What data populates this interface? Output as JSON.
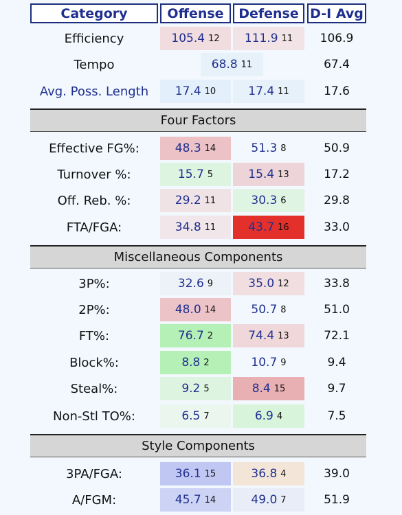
{
  "headers": {
    "category": "Category",
    "offense": "Offense",
    "defense": "Defense",
    "avg": "D-I Avg"
  },
  "top": [
    {
      "label": "Efficiency",
      "off": {
        "value": "105.4",
        "rank": "12",
        "color": "#f1dde0"
      },
      "def": {
        "value": "111.9",
        "rank": "11",
        "color": "#f2e4e6"
      },
      "avg": "106.9"
    },
    {
      "label": "Tempo",
      "span": {
        "value": "68.8",
        "rank": "11",
        "color": "#e6f1fa"
      },
      "avg": "67.4"
    },
    {
      "label": "Avg. Poss. Length",
      "label_color": "blue",
      "off": {
        "value": "17.4",
        "rank": "10",
        "color": "#e3f0fb"
      },
      "def": {
        "value": "17.4",
        "rank": "11",
        "color": "#e6f1fa"
      },
      "avg": "17.6"
    }
  ],
  "sections": [
    {
      "title": "Four Factors",
      "rows": [
        {
          "label": "Effective FG%:",
          "off": {
            "value": "48.3",
            "rank": "14",
            "color": "#ecc2c6"
          },
          "def": {
            "value": "51.3",
            "rank": "8",
            "color": "#f2f8fd"
          },
          "avg": "50.9"
        },
        {
          "label": "Turnover %:",
          "off": {
            "value": "15.7",
            "rank": "5",
            "color": "#ddf4e1"
          },
          "def": {
            "value": "15.4",
            "rank": "13",
            "color": "#ecd4d8"
          },
          "avg": "17.2"
        },
        {
          "label": "Off. Reb. %:",
          "off": {
            "value": "29.2",
            "rank": "11",
            "color": "#f0e3e6"
          },
          "def": {
            "value": "30.3",
            "rank": "6",
            "color": "#e0f4e4"
          },
          "avg": "29.8"
        },
        {
          "label": "FTA/FGA:",
          "off": {
            "value": "34.8",
            "rank": "11",
            "color": "#f1e6e9"
          },
          "def": {
            "value": "43.7",
            "rank": "16",
            "color": "#e4302a"
          },
          "avg": "33.0"
        }
      ]
    },
    {
      "title": "Miscellaneous Components",
      "rows": [
        {
          "label": "3P%:",
          "off": {
            "value": "32.6",
            "rank": "9",
            "color": "#edf2f8"
          },
          "def": {
            "value": "35.0",
            "rank": "12",
            "color": "#f0dee0"
          },
          "avg": "33.8"
        },
        {
          "label": "2P%:",
          "off": {
            "value": "48.0",
            "rank": "14",
            "color": "#ecc4c8"
          },
          "def": {
            "value": "50.7",
            "rank": "8",
            "color": "#f2f8fd"
          },
          "avg": "51.0"
        },
        {
          "label": "FT%:",
          "off": {
            "value": "76.7",
            "rank": "2",
            "color": "#b5f0b6"
          },
          "def": {
            "value": "74.4",
            "rank": "13",
            "color": "#efd7da"
          },
          "avg": "72.1"
        },
        {
          "label": "Block%:",
          "off": {
            "value": "8.8",
            "rank": "2",
            "color": "#b5f0b6"
          },
          "def": {
            "value": "10.7",
            "rank": "9",
            "color": "#f2f8fd"
          },
          "avg": "9.4"
        },
        {
          "label": "Steal%:",
          "off": {
            "value": "9.2",
            "rank": "5",
            "color": "#ddf4e1"
          },
          "def": {
            "value": "8.4",
            "rank": "15",
            "color": "#e8b0b3"
          },
          "avg": "9.7"
        },
        {
          "label": "Non-Stl TO%:",
          "off": {
            "value": "6.5",
            "rank": "7",
            "color": "#ebf6ef"
          },
          "def": {
            "value": "6.9",
            "rank": "4",
            "color": "#d8f5dc"
          },
          "avg": "7.5"
        }
      ]
    },
    {
      "title": "Style Components",
      "rows": [
        {
          "label": "3PA/FGA:",
          "off": {
            "value": "36.1",
            "rank": "15",
            "color": "#c0c7f2"
          },
          "def": {
            "value": "36.8",
            "rank": "4",
            "color": "#f3e6d9"
          },
          "avg": "39.0"
        },
        {
          "label": "A/FGM:",
          "off": {
            "value": "45.7",
            "rank": "14",
            "color": "#ccd3f4"
          },
          "def": {
            "value": "49.0",
            "rank": "7",
            "color": "#e8edf8"
          },
          "avg": "51.9"
        }
      ]
    }
  ]
}
